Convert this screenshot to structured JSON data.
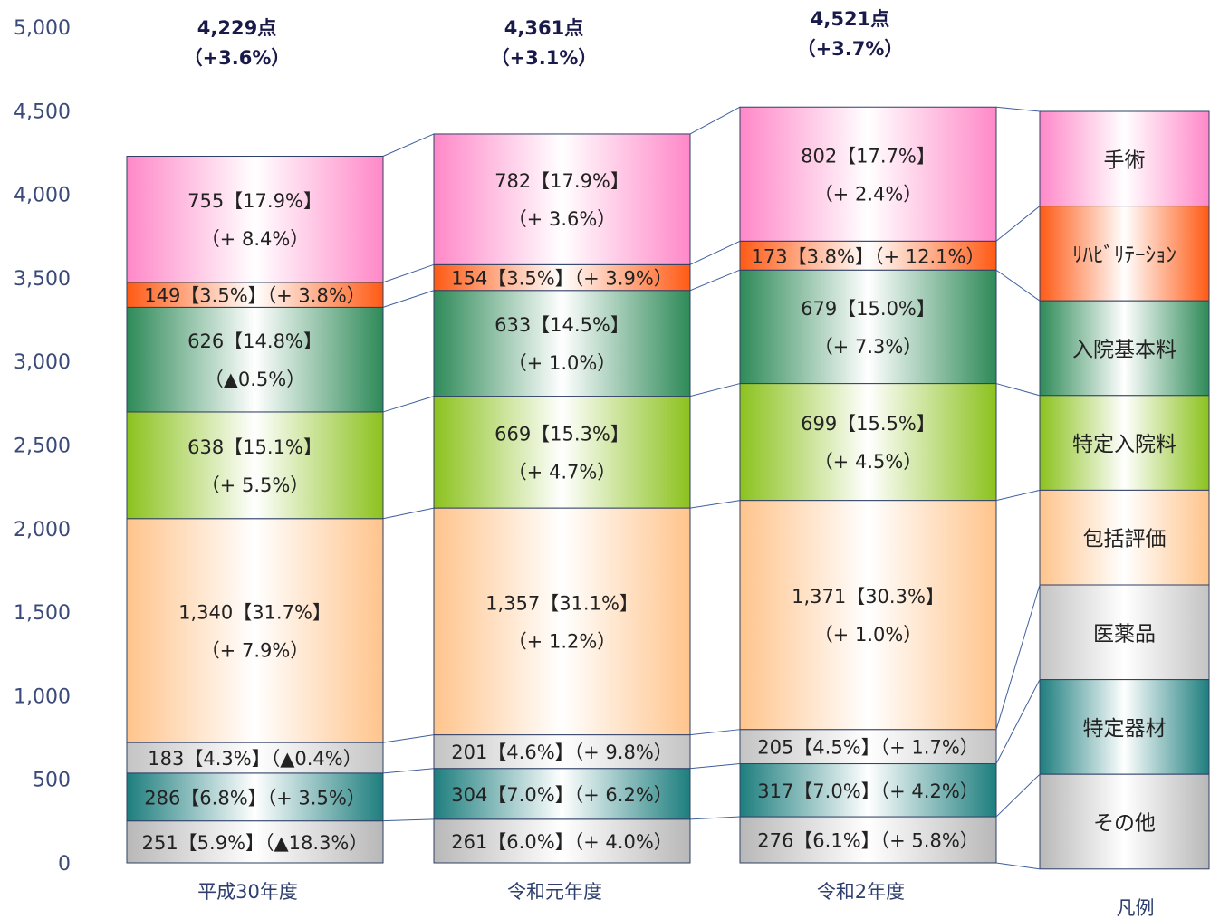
{
  "chart_data": {
    "type": "bar",
    "stacked": true,
    "categories": [
      "平成30年度",
      "令和元年度",
      "令和2年度"
    ],
    "ylim": [
      0,
      5000
    ],
    "yticks": [
      "0",
      "500",
      "1,000",
      "1,500",
      "2,000",
      "2,500",
      "3,000",
      "3,500",
      "4,000",
      "4,500",
      "5,000"
    ],
    "totals": [
      {
        "value": 4229,
        "label": "4,229点",
        "change": "（+3.6%）"
      },
      {
        "value": 4361,
        "label": "4,361点",
        "change": "（+3.1%）"
      },
      {
        "value": 4521,
        "label": "4,521点",
        "change": "（+3.7%）"
      }
    ],
    "series": [
      {
        "name": "その他",
        "color": "#b8b8b8",
        "values": [
          251,
          261,
          276
        ],
        "labels": [
          "251【5.9%】（▲18.3%）",
          "261【6.0%】（+ 4.0%）",
          "276【6.1%】（+ 5.8%）"
        ]
      },
      {
        "name": "特定器材",
        "color": "#1e7e7e",
        "values": [
          286,
          304,
          317
        ],
        "labels": [
          "286【6.8%】（+ 3.5%）",
          "304【7.0%】（+ 6.2%）",
          "317【7.0%】（+ 4.2%）"
        ]
      },
      {
        "name": "医薬品",
        "color": "#c4c4c4",
        "values": [
          183,
          201,
          205
        ],
        "labels": [
          "183【4.3%】（▲0.4%）",
          "201【4.6%】（+ 9.8%）",
          "205【4.5%】（+ 1.7%）"
        ]
      },
      {
        "name": "包括評価",
        "color": "#ffc48c",
        "values": [
          1340,
          1357,
          1371
        ],
        "labels": [
          "1,340【31.7%】",
          "1,357【31.1%】",
          "1,371【30.3%】"
        ],
        "sublabels": [
          "（+ 7.9%）",
          "（+ 1.2%）",
          "（+ 1.0%）"
        ]
      },
      {
        "name": "特定入院料",
        "color": "#8cc21e",
        "values": [
          638,
          669,
          699
        ],
        "labels": [
          "638【15.1%】",
          "669【15.3%】",
          "699【15.5%】"
        ],
        "sublabels": [
          "（+ 5.5%）",
          "（+ 4.7%）",
          "（+ 4.5%）"
        ]
      },
      {
        "name": "入院基本料",
        "color": "#2e8a58",
        "values": [
          626,
          633,
          679
        ],
        "labels": [
          "626【14.8%】",
          "633【14.5%】",
          "679【15.0%】"
        ],
        "sublabels": [
          "（▲0.5%）",
          "（+ 1.0%）",
          "（+ 7.3%）"
        ]
      },
      {
        "name": "ﾘﾊﾋﾞﾘﾃｰｼｮﾝ",
        "color": "#ff5a14",
        "values": [
          149,
          154,
          173
        ],
        "labels": [
          "149【3.5%】（+ 3.8%）",
          "154【3.5%】（+ 3.9%）",
          "173【3.8%】（+ 12.1%）"
        ]
      },
      {
        "name": "手術",
        "color": "#ff88c8",
        "values": [
          755,
          782,
          802
        ],
        "labels": [
          "755【17.9%】",
          "782【17.9%】",
          "802【17.7%】"
        ],
        "sublabels": [
          "（+ 8.4%）",
          "（+ 3.6%）",
          "（+ 2.4%）"
        ]
      }
    ],
    "legend": {
      "title": "凡例",
      "items": [
        "手術",
        "ﾘﾊﾋﾞﾘﾃｰｼｮﾝ",
        "入院基本料",
        "特定入院料",
        "包括評価",
        "医薬品",
        "特定器材",
        "その他"
      ]
    }
  }
}
